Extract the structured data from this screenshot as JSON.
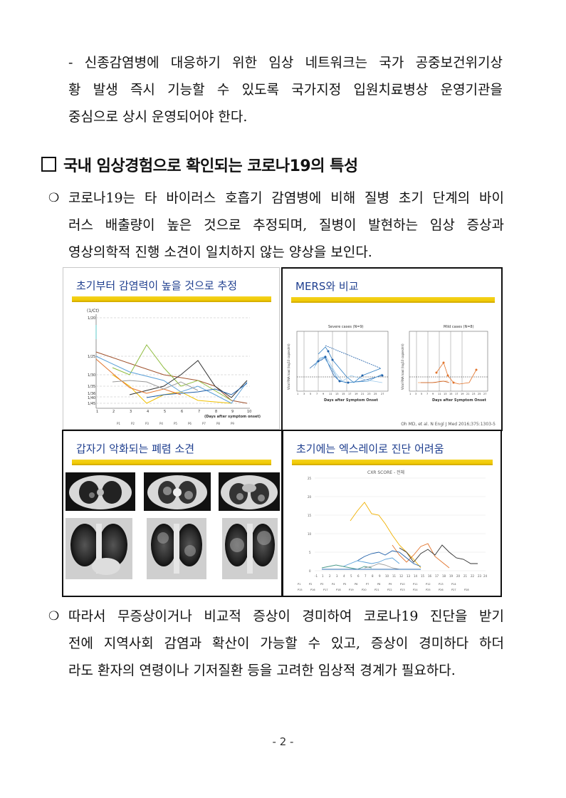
{
  "para1": {
    "lines": [
      "- 신종감염병에 대응하기 위한 임상 네트워크는 국가 공중보건위기상",
      "황 발생 즉시 기능할 수 있도록 국가지정 입원치료병상 운영기관을",
      "중심으로 상시 운영되어야 한다."
    ]
  },
  "section_heading": "국내 임상경험으로 확인되는 코로나19의 특성",
  "bullet1": {
    "marker": "❍",
    "lines": [
      "코로나19는 타 바이러스 호흡기 감염병에 비해 질병 초기 단계의 바이",
      "러스 배출량이 높은 것으로 추정되며, 질병이 발현하는 임상 증상과",
      "영상의학적 진행 소견이 일치하지 않는 양상을 보인다."
    ]
  },
  "figure": {
    "panel_a": {
      "title": "초기부터 감염력이 높을 것으로 추정",
      "y_axis_unit": "(1/Ct)",
      "x_axis_label": "(Days after symptom onset)",
      "y_ticks": [
        "1/20",
        "1/25",
        "1/30",
        "1/35",
        "1/36",
        "1/40",
        "1/45"
      ],
      "x_ticks": [
        "1",
        "2",
        "3",
        "4",
        "5",
        "6",
        "7",
        "8",
        "9",
        "10"
      ],
      "legend": [
        "P1",
        "P2",
        "P3",
        "P4",
        "P5",
        "P6",
        "P7",
        "P8",
        "P9"
      ]
    },
    "panel_b": {
      "title": "MERS와 비교",
      "left_title": "Severe cases (N=9)",
      "right_title": "Mild cases (N=8)",
      "y_label": "Viral RNA load (log10 copies/ml)",
      "x_label": "Days after Symptom Onset",
      "x_ticks": [
        "1",
        "3",
        "5",
        "7",
        "9",
        "11",
        "13",
        "15",
        "17",
        "19",
        "21",
        "23",
        "25",
        "27"
      ],
      "y_ticks": [
        "0",
        "1",
        "2",
        "3",
        "4",
        "5",
        "6",
        "7",
        "8",
        "9",
        "10"
      ],
      "citation": "Oh MD, et al. N Engl J Med 2016;375:1303-5"
    },
    "panel_c": {
      "title": "갑자기 악화되는 폐렴 소견"
    },
    "panel_d": {
      "title": "초기에는 엑스레이로 진단 어려움",
      "chart_title": "CXR SCORE - 전체",
      "y_ticks": [
        "0",
        "5",
        "10",
        "15",
        "20",
        "25"
      ],
      "x_ticks": [
        "-1",
        "1",
        "2",
        "3",
        "4",
        "5",
        "6",
        "7",
        "8",
        "9",
        "10",
        "11",
        "12",
        "13",
        "14",
        "15",
        "16",
        "17",
        "18",
        "19",
        "20",
        "21",
        "22",
        "23",
        "24"
      ],
      "legend": [
        "P1",
        "P2",
        "P3",
        "P4",
        "P5",
        "P6",
        "P7",
        "P8",
        "P9",
        "P10",
        "P11",
        "P12",
        "P13",
        "P14",
        "P15",
        "P16",
        "P17",
        "P18",
        "P19",
        "P20",
        "P21",
        "P22",
        "P23",
        "P24",
        "P25",
        "P26",
        "P27",
        "P28"
      ]
    }
  },
  "bullet2": {
    "marker": "❍",
    "lines": [
      "따라서 무증상이거나 비교적 증상이 경미하여 코로나19 진단을 받기",
      "전에 지역사회 감염과 확산이 가능할 수 있고, 증상이 경미하다 하더",
      "라도 환자의 연령이나 기저질환 등을 고려한 임상적 경계가 필요하다."
    ]
  },
  "page_number": "- 2 -",
  "colors": {
    "title_blue": "#1f3f8f",
    "highlight_yellow": "#f0c800",
    "panel_border": "#111111"
  }
}
